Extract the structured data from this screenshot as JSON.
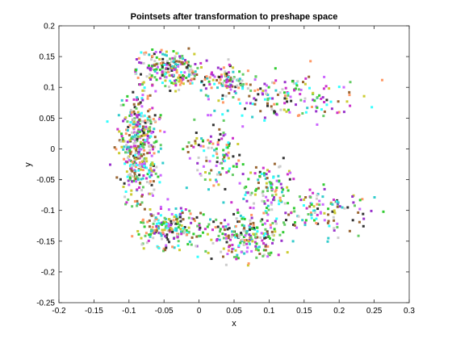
{
  "chart_data": {
    "type": "scatter",
    "title": "Pointsets after transformation to preshape space",
    "xlabel": "x",
    "ylabel": "y",
    "xlim": [
      -0.2,
      0.3
    ],
    "ylim": [
      -0.25,
      0.2
    ],
    "xticks": [
      "-0.2",
      "-0.15",
      "-0.1",
      "-0.05",
      "0",
      "0.05",
      "0.1",
      "0.15",
      "0.2",
      "0.25",
      "0.3"
    ],
    "yticks": [
      "-0.25",
      "-0.2",
      "-0.15",
      "-0.1",
      "-0.05",
      "0",
      "0.05",
      "0.1",
      "0.15",
      "0.2"
    ],
    "grid": false,
    "marker": "small filled square",
    "colors": [
      "#9933cc",
      "#33cccc",
      "#33cc33",
      "#996633",
      "#cc33cc",
      "#33ffff",
      "#cc66ff",
      "#ff9966",
      "#66cc66",
      "#333333",
      "#cccc33",
      "#cccccc"
    ],
    "point_groups": [
      {
        "center": [
          -0.085,
          0.0
        ],
        "radius": [
          0.03,
          0.09
        ],
        "count": 420
      },
      {
        "center": [
          -0.04,
          0.13
        ],
        "radius": [
          0.05,
          0.03
        ],
        "count": 220
      },
      {
        "center": [
          0.04,
          0.11
        ],
        "radius": [
          0.03,
          0.025
        ],
        "count": 90
      },
      {
        "center": [
          0.13,
          0.085
        ],
        "radius": [
          0.1,
          0.04
        ],
        "count": 150
      },
      {
        "center": [
          -0.04,
          -0.13
        ],
        "radius": [
          0.05,
          0.035
        ],
        "count": 200
      },
      {
        "center": [
          0.07,
          -0.14
        ],
        "radius": [
          0.06,
          0.045
        ],
        "count": 230
      },
      {
        "center": [
          0.17,
          -0.1
        ],
        "radius": [
          0.07,
          0.04
        ],
        "count": 120
      },
      {
        "center": [
          0.02,
          0.0
        ],
        "radius": [
          0.04,
          0.06
        ],
        "count": 110
      },
      {
        "center": [
          0.1,
          -0.06
        ],
        "radius": [
          0.04,
          0.035
        ],
        "count": 90
      }
    ]
  }
}
